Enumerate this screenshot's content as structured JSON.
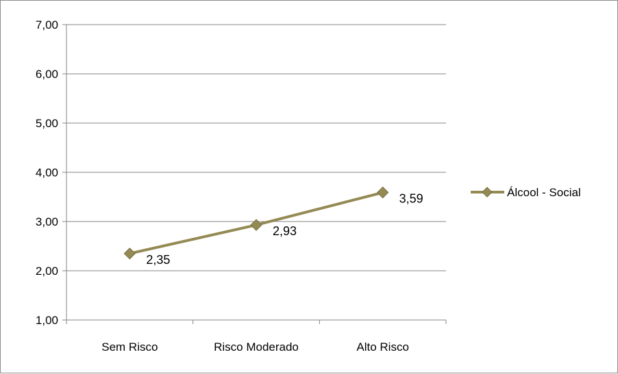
{
  "chart_data": {
    "type": "line",
    "categories": [
      "Sem Risco",
      "Risco Moderado",
      "Alto Risco"
    ],
    "series": [
      {
        "name": "Álcool - Social",
        "values": [
          2.35,
          2.93,
          3.59
        ],
        "value_labels": [
          "2,35",
          "2,93",
          "3,59"
        ],
        "color": "#948A54"
      }
    ],
    "ylim": [
      1,
      7
    ],
    "y_ticks": [
      1,
      2,
      3,
      4,
      5,
      6,
      7
    ],
    "y_tick_labels": [
      "1,00",
      "2,00",
      "3,00",
      "4,00",
      "5,00",
      "6,00",
      "7,00"
    ],
    "grid": true,
    "legend_position": "right",
    "title": "",
    "xlabel": "",
    "ylabel": ""
  }
}
